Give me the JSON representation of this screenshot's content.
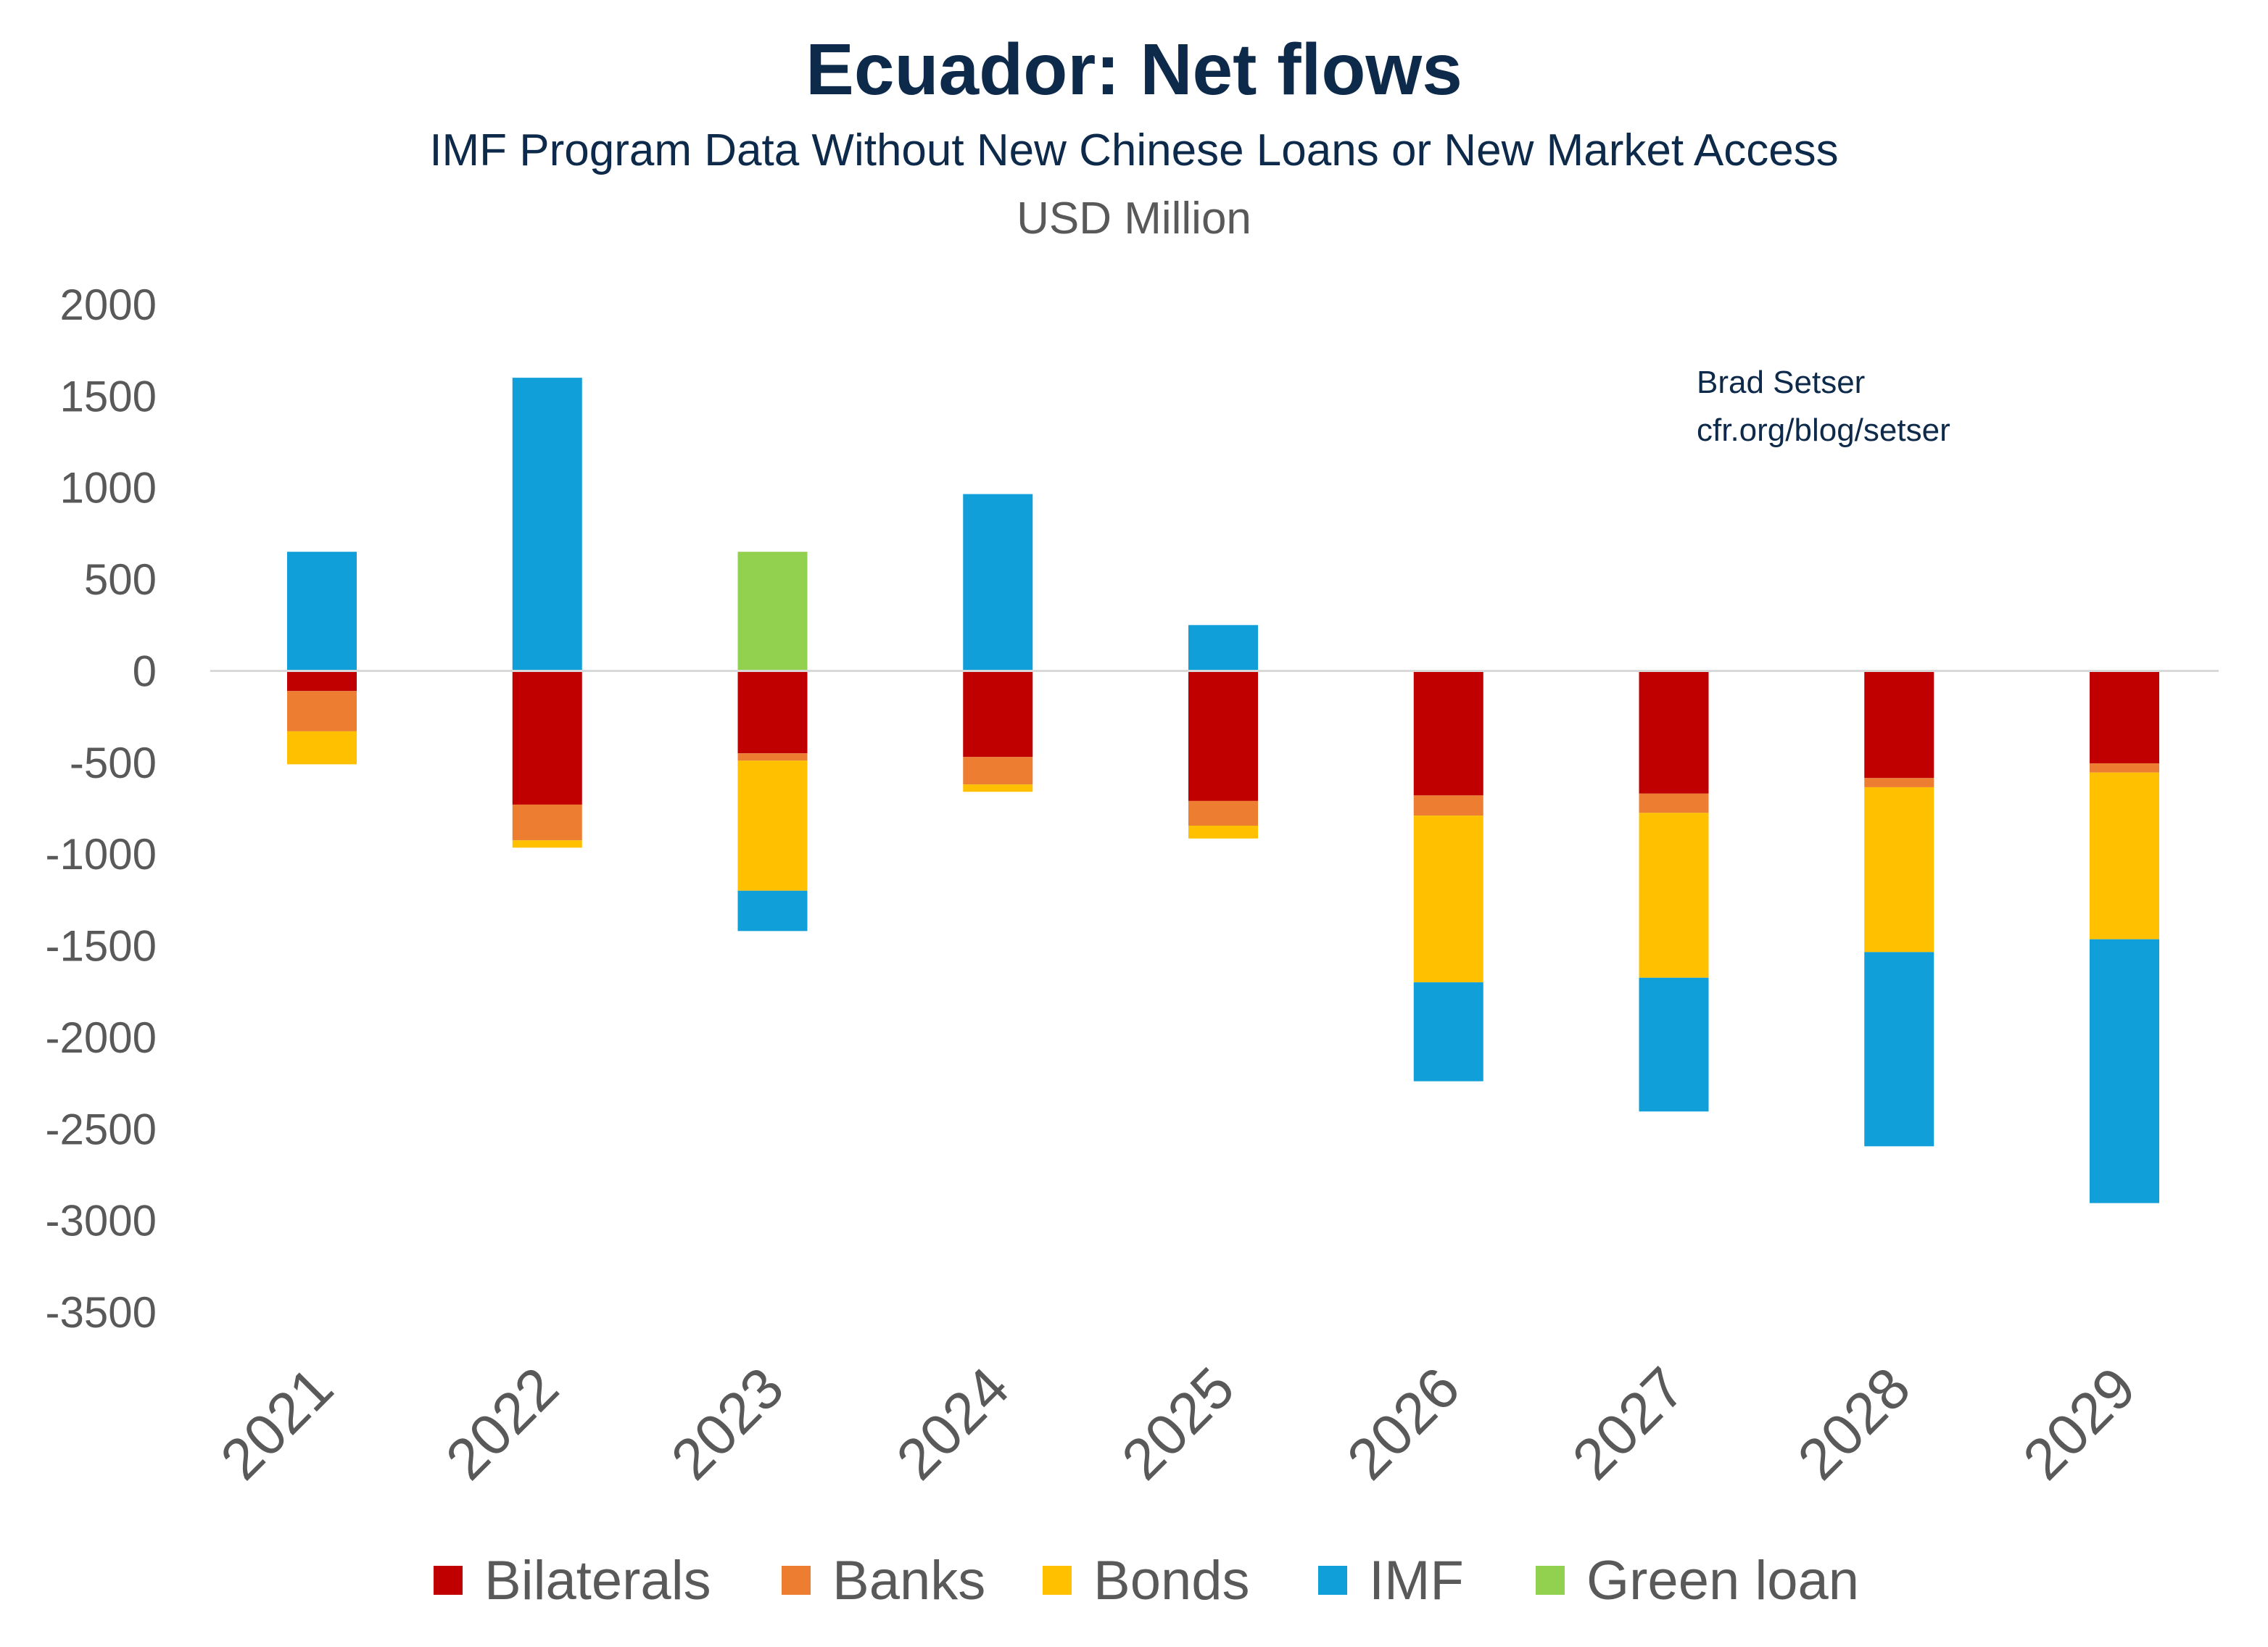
{
  "chart_data": {
    "type": "bar",
    "stacked": true,
    "title": "Ecuador: Net flows",
    "subtitle": "IMF Program Data Without New Chinese Loans or New Market Access",
    "ylabel": "USD Million",
    "ylim": [
      -3500,
      2000
    ],
    "yticks": [
      2000,
      1500,
      1000,
      500,
      0,
      -500,
      -1000,
      -1500,
      -2000,
      -2500,
      -3000,
      -3500
    ],
    "grid": false,
    "legend_position": "bottom",
    "categories": [
      "2021",
      "2022",
      "2023",
      "2024",
      "2025",
      "2026",
      "2027",
      "2028",
      "2029"
    ],
    "series": [
      {
        "name": "Bilaterals",
        "color": "#c00000",
        "values": [
          -110,
          -730,
          -450,
          -470,
          -710,
          -680,
          -670,
          -585,
          -505
        ]
      },
      {
        "name": "Banks",
        "color": "#ed7d31",
        "values": [
          -220,
          -195,
          -40,
          -150,
          -135,
          -110,
          -105,
          -50,
          -50
        ]
      },
      {
        "name": "Bonds",
        "color": "#ffc000",
        "values": [
          -180,
          -40,
          -710,
          -40,
          -70,
          -910,
          -900,
          -900,
          -910
        ]
      },
      {
        "name": "IMF",
        "color": "#109fd8",
        "values": [
          650,
          1600,
          -220,
          965,
          250,
          -540,
          -730,
          -1060,
          -1440
        ]
      },
      {
        "name": "Green loan",
        "color": "#92d050",
        "values": [
          0,
          0,
          650,
          0,
          0,
          0,
          0,
          0,
          0
        ]
      }
    ],
    "annotation": [
      "Brad Setser",
      "cfr.org/blog/setser"
    ]
  }
}
